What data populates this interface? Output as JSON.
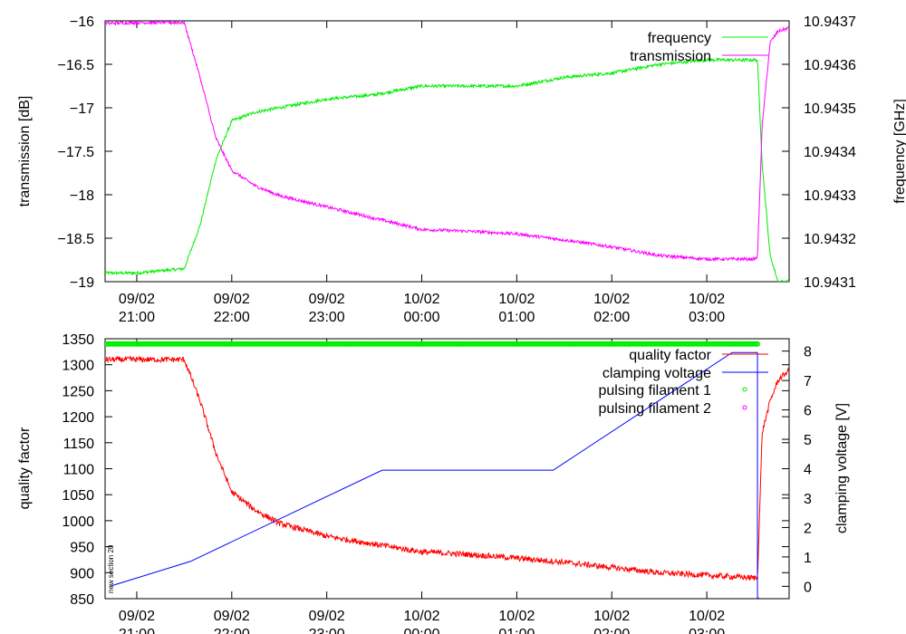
{
  "chart_data": [
    {
      "type": "line",
      "title": "",
      "ylabel": "transmission [dB]",
      "y2label": "frequency [GHz]",
      "ylim": [
        -19,
        -16
      ],
      "y2lim": [
        10.9431,
        10.9437
      ],
      "yticks": [
        "−16",
        "−16.5",
        "−17",
        "−17.5",
        "−18",
        "−18.5",
        "−19"
      ],
      "y2ticks": [
        "10.9437",
        "10.9436",
        "10.9435",
        "10.9434",
        "10.9433",
        "10.9432",
        "10.9431"
      ],
      "xticks": [
        {
          "date": "09/02",
          "time": "21:00"
        },
        {
          "date": "09/02",
          "time": "22:00"
        },
        {
          "date": "09/02",
          "time": "23:00"
        },
        {
          "date": "10/02",
          "time": "00:00"
        },
        {
          "date": "10/02",
          "time": "01:00"
        },
        {
          "date": "10/02",
          "time": "02:00"
        },
        {
          "date": "10/02",
          "time": "03:00"
        }
      ],
      "xlim": [
        "09/02 20:40",
        "10/02 03:52"
      ],
      "legend_position": "top-right",
      "series": [
        {
          "name": "frequency",
          "axis": "y2",
          "color": "#00ee00",
          "x": [
            "09/02 20:40",
            "09/02 21:00",
            "09/02 21:30",
            "09/02 21:40",
            "09/02 21:50",
            "09/02 22:00",
            "09/02 22:15",
            "09/02 22:30",
            "09/02 23:00",
            "09/02 23:30",
            "10/02 00:00",
            "10/02 00:30",
            "10/02 01:00",
            "10/02 01:30",
            "10/02 02:00",
            "10/02 02:30",
            "10/02 03:00",
            "10/02 03:30",
            "10/02 03:32",
            "10/02 03:35",
            "10/02 03:40",
            "10/02 03:45",
            "10/02 03:52"
          ],
          "values": [
            10.94312,
            10.94312,
            10.94313,
            10.94323,
            10.94338,
            10.94347,
            10.94349,
            10.9435,
            10.94352,
            10.94353,
            10.94355,
            10.94355,
            10.94355,
            10.94357,
            10.94358,
            10.9436,
            10.94361,
            10.94361,
            10.94361,
            10.94337,
            10.94316,
            10.9431,
            10.9431
          ]
        },
        {
          "name": "transmission",
          "axis": "y",
          "color": "#ff00ff",
          "x": [
            "09/02 20:40",
            "09/02 21:00",
            "09/02 21:30",
            "09/02 21:40",
            "09/02 21:50",
            "09/02 22:00",
            "09/02 22:15",
            "09/02 22:30",
            "09/02 23:00",
            "09/02 23:30",
            "10/02 00:00",
            "10/02 00:30",
            "10/02 01:00",
            "10/02 01:30",
            "10/02 02:00",
            "10/02 02:30",
            "10/02 03:00",
            "10/02 03:30",
            "10/02 03:32",
            "10/02 03:35",
            "10/02 03:40",
            "10/02 03:45",
            "10/02 03:52"
          ],
          "values": [
            -16.03,
            -16.02,
            -16.02,
            -16.65,
            -17.35,
            -17.72,
            -17.9,
            -18.01,
            -18.14,
            -18.27,
            -18.4,
            -18.42,
            -18.45,
            -18.52,
            -18.6,
            -18.7,
            -18.74,
            -18.74,
            -18.72,
            -17.2,
            -16.25,
            -16.12,
            -16.08
          ]
        }
      ]
    },
    {
      "type": "line",
      "title": "",
      "ylabel": "quality factor",
      "y2label": "clamping voltage [V]",
      "ylim": [
        850,
        1350
      ],
      "y2lim": [
        -0.42,
        8.42
      ],
      "yticks": [
        "1350",
        "1300",
        "1250",
        "1200",
        "1150",
        "1100",
        "1050",
        "1000",
        "950",
        "900",
        "850"
      ],
      "y2ticks": [
        "8",
        "7",
        "6",
        "5",
        "4",
        "3",
        "2",
        "1",
        "0"
      ],
      "xticks": [
        {
          "date": "09/02",
          "time": "21:00"
        },
        {
          "date": "09/02",
          "time": "22:00"
        },
        {
          "date": "09/02",
          "time": "23:00"
        },
        {
          "date": "10/02",
          "time": "00:00"
        },
        {
          "date": "10/02",
          "time": "01:00"
        },
        {
          "date": "10/02",
          "time": "02:00"
        },
        {
          "date": "10/02",
          "time": "03:00"
        }
      ],
      "xlim": [
        "09/02 20:40",
        "10/02 03:52"
      ],
      "legend_position": "top-right",
      "annotation": "new section 20",
      "series": [
        {
          "name": "quality factor",
          "axis": "y",
          "color": "#ff0000",
          "x": [
            "09/02 20:40",
            "09/02 21:00",
            "09/02 21:30",
            "09/02 21:40",
            "09/02 21:50",
            "09/02 22:00",
            "09/02 22:15",
            "09/02 22:30",
            "09/02 23:00",
            "09/02 23:30",
            "10/02 00:00",
            "10/02 00:30",
            "10/02 01:00",
            "10/02 01:30",
            "10/02 02:00",
            "10/02 02:30",
            "10/02 03:00",
            "10/02 03:30",
            "10/02 03:32",
            "10/02 03:35",
            "10/02 03:40",
            "10/02 03:45",
            "10/02 03:52"
          ],
          "values": [
            1310,
            1310,
            1310,
            1230,
            1130,
            1055,
            1020,
            995,
            970,
            955,
            940,
            935,
            928,
            920,
            910,
            900,
            895,
            890,
            890,
            1170,
            1230,
            1270,
            1290
          ]
        },
        {
          "name": "clamping voltage",
          "axis": "y2",
          "color": "#0000ff",
          "x": [
            "09/02 20:43",
            "09/02 21:34",
            "09/02 23:35",
            "10/02 01:23",
            "10/02 03:16",
            "10/02 03:25",
            "10/02 03:32",
            "10/02 03:32",
            "10/02 03:33"
          ],
          "values": [
            0.0,
            0.85,
            3.95,
            3.95,
            7.95,
            7.95,
            7.95,
            -0.4,
            -0.4
          ]
        },
        {
          "name": "pulsing filament 1",
          "axis": "y",
          "color": "#00ee00",
          "marker": "circle",
          "x_range": [
            "09/02 20:40",
            "10/02 03:32"
          ],
          "level": 1340
        },
        {
          "name": "pulsing filament 2",
          "axis": "y",
          "color": "#ff00ff",
          "marker": "circle"
        }
      ]
    }
  ]
}
